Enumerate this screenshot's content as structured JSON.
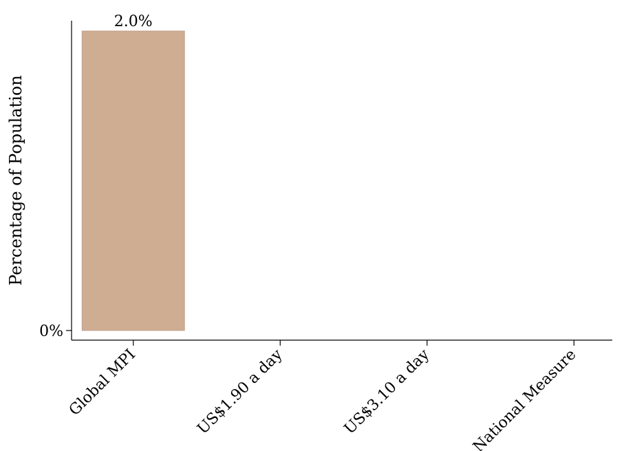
{
  "chart_data": {
    "type": "bar",
    "ylabel": "Percentage of Population",
    "xlabel": "",
    "categories": [
      "Global MPI",
      "US$1.90 a day",
      "US$3.10 a day",
      "National Measure"
    ],
    "values": [
      2.0,
      0,
      0,
      0
    ],
    "data_labels": [
      "2.0%",
      "",
      "",
      ""
    ],
    "yticks": [
      {
        "value": 0,
        "label": "0%"
      }
    ],
    "ylim": [
      0,
      2.0
    ],
    "bar_color": "#cfad93",
    "grid": false,
    "legend": "none"
  }
}
